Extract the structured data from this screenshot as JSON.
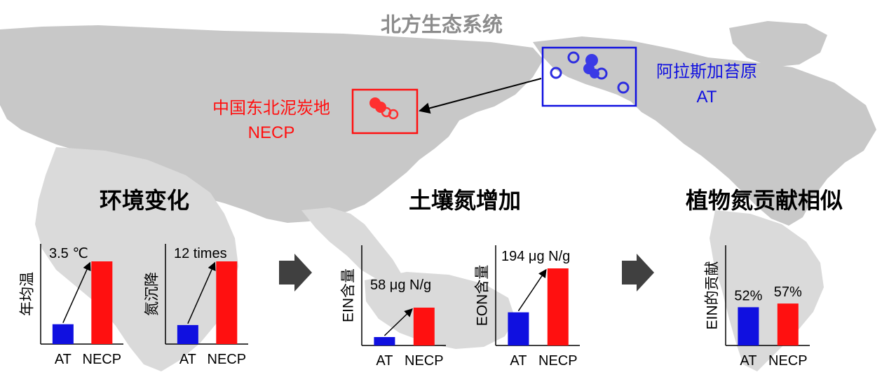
{
  "title": "北方生态系统",
  "colors": {
    "at": "#1010e0",
    "necp": "#ff1010",
    "land": "#c8c8c8",
    "land_light": "#d9d9d9",
    "title_gray": "#8c8c8c",
    "arrow": "#404040"
  },
  "map": {
    "at_region": {
      "name": "阿拉斯加苔原",
      "abbr": "AT"
    },
    "necp_region": {
      "name": "中国东北泥炭地",
      "abbr": "NECP"
    }
  },
  "sections": [
    {
      "id": "env",
      "heading": "环境变化"
    },
    {
      "id": "soil",
      "heading": "土壤氮增加"
    },
    {
      "id": "plant",
      "heading": "植物氮贡献相似"
    }
  ],
  "chart_data": [
    {
      "type": "bar",
      "ylabel": "年均温",
      "categories": [
        "AT",
        "NECP"
      ],
      "values": [
        0.24,
        1.0
      ],
      "annotation": "3.5 ℃",
      "arrow": true,
      "value_labels": [
        "",
        ""
      ]
    },
    {
      "type": "bar",
      "ylabel": "氮沉降",
      "categories": [
        "AT",
        "NECP"
      ],
      "values": [
        0.23,
        1.0
      ],
      "annotation": "12 times",
      "arrow": true,
      "value_labels": [
        "",
        ""
      ]
    },
    {
      "type": "bar",
      "ylabel": "EIN含量",
      "categories": [
        "AT",
        "NECP"
      ],
      "values": [
        0.2,
        0.9
      ],
      "annotation": "58 μg N/g",
      "arrow": true,
      "value_labels": [
        "",
        ""
      ]
    },
    {
      "type": "bar",
      "ylabel": "EON含量",
      "categories": [
        "AT",
        "NECP"
      ],
      "values": [
        0.43,
        1.0
      ],
      "annotation": "194 μg N/g",
      "arrow": true,
      "value_labels": [
        "",
        ""
      ]
    },
    {
      "type": "bar",
      "ylabel": "EIN的贡献",
      "categories": [
        "AT",
        "NECP"
      ],
      "values": [
        0.52,
        0.57
      ],
      "annotation": "",
      "arrow": false,
      "value_labels": [
        "52%",
        "57%"
      ]
    }
  ]
}
